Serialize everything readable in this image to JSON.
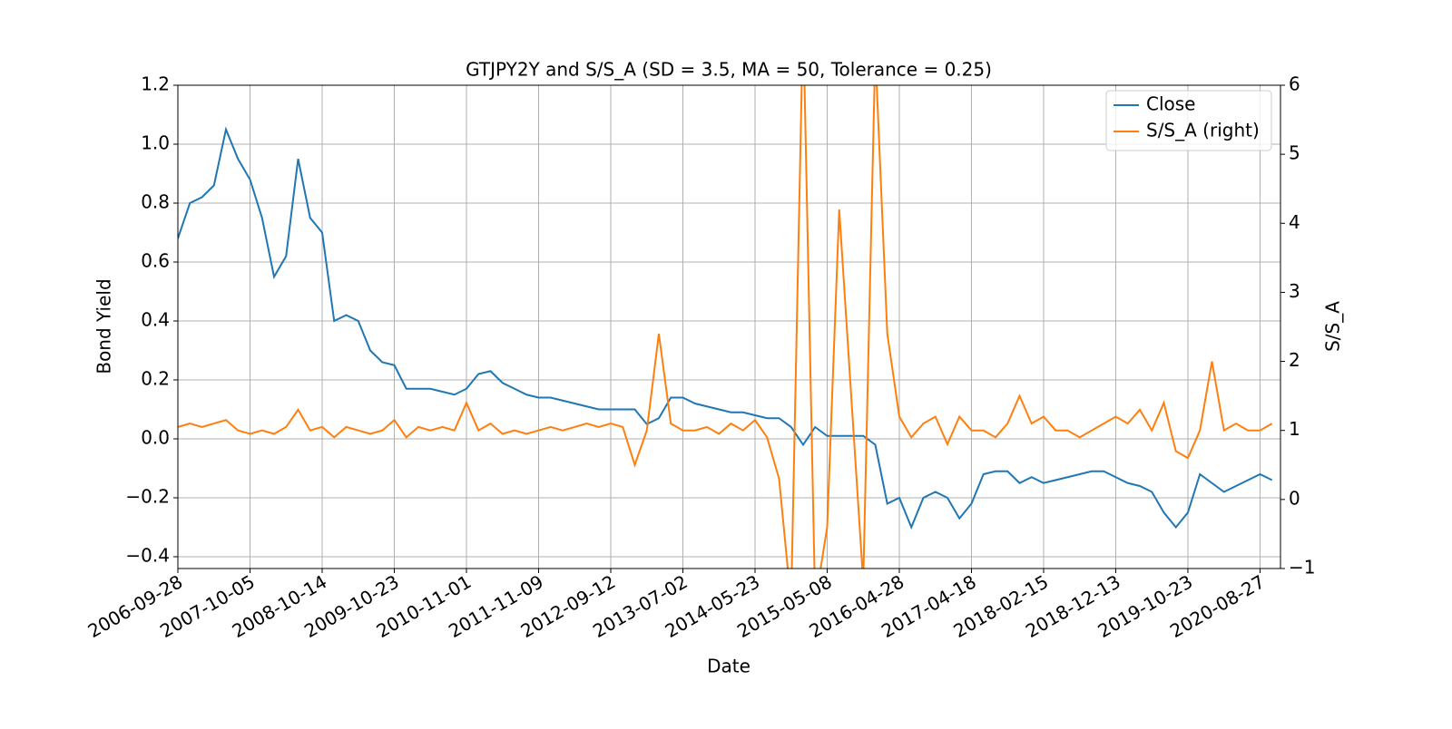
{
  "chart_data": {
    "type": "line",
    "title": "GTJPY2Y and S/S_A (SD = 3.5, MA = 50, Tolerance  = 0.25)",
    "x_label": "Date",
    "y_label": "Bond Yield",
    "y2_label": "S/S_A",
    "categories": [
      "2006-09-28",
      null,
      null,
      null,
      null,
      null,
      "2007-10-05",
      null,
      null,
      null,
      null,
      null,
      "2008-10-14",
      null,
      null,
      null,
      null,
      null,
      "2009-10-23",
      null,
      null,
      null,
      null,
      null,
      "2010-11-01",
      null,
      null,
      null,
      null,
      null,
      "2011-11-09",
      null,
      null,
      null,
      null,
      null,
      "2012-09-12",
      null,
      null,
      null,
      null,
      null,
      "2013-07-02",
      null,
      null,
      null,
      null,
      null,
      "2014-05-23",
      null,
      null,
      null,
      null,
      null,
      "2015-05-08",
      null,
      null,
      null,
      null,
      null,
      "2016-04-28",
      null,
      null,
      null,
      null,
      null,
      "2017-04-18",
      null,
      null,
      null,
      null,
      null,
      "2018-02-15",
      null,
      null,
      null,
      null,
      null,
      "2018-12-13",
      null,
      null,
      null,
      null,
      null,
      "2019-10-23",
      null,
      null,
      null,
      null,
      null,
      "2020-08-27",
      null
    ],
    "series": [
      {
        "name": "Close",
        "color": "#1f77b4",
        "axis": "y",
        "values": [
          0.68,
          0.8,
          0.82,
          0.86,
          1.05,
          0.95,
          0.88,
          0.75,
          0.55,
          0.62,
          0.95,
          0.75,
          0.7,
          0.4,
          0.42,
          0.4,
          0.3,
          0.26,
          0.25,
          0.17,
          0.17,
          0.17,
          0.16,
          0.15,
          0.17,
          0.22,
          0.23,
          0.19,
          0.17,
          0.15,
          0.14,
          0.14,
          0.13,
          0.12,
          0.11,
          0.1,
          0.1,
          0.1,
          0.1,
          0.05,
          0.07,
          0.14,
          0.14,
          0.12,
          0.11,
          0.1,
          0.09,
          0.09,
          0.08,
          0.07,
          0.07,
          0.04,
          -0.02,
          0.04,
          0.01,
          0.01,
          0.01,
          0.01,
          -0.02,
          -0.22,
          -0.2,
          -0.3,
          -0.2,
          -0.18,
          -0.2,
          -0.27,
          -0.22,
          -0.12,
          -0.11,
          -0.11,
          -0.15,
          -0.13,
          -0.15,
          -0.14,
          -0.13,
          -0.12,
          -0.11,
          -0.11,
          -0.13,
          -0.15,
          -0.16,
          -0.18,
          -0.25,
          -0.3,
          -0.25,
          -0.12,
          -0.15,
          -0.18,
          -0.16,
          -0.14,
          -0.12,
          -0.14
        ]
      },
      {
        "name": "S/S_A (right)",
        "color": "#ff7f0e",
        "axis": "y2",
        "values": [
          1.05,
          1.1,
          1.05,
          1.1,
          1.15,
          1.0,
          0.95,
          1.0,
          0.95,
          1.05,
          1.3,
          1.0,
          1.05,
          0.9,
          1.05,
          1.0,
          0.95,
          1.0,
          1.15,
          0.9,
          1.05,
          1.0,
          1.05,
          1.0,
          1.4,
          1.0,
          1.1,
          0.95,
          1.0,
          0.95,
          1.0,
          1.05,
          1.0,
          1.05,
          1.1,
          1.05,
          1.1,
          1.05,
          0.5,
          1.0,
          2.4,
          1.1,
          1.0,
          1.0,
          1.05,
          0.95,
          1.1,
          1.0,
          1.15,
          0.9,
          0.3,
          -1.5,
          7.0,
          -1.5,
          -0.4,
          4.2,
          1.5,
          -1.2,
          6.5,
          2.4,
          1.2,
          0.9,
          1.1,
          1.2,
          0.8,
          1.2,
          1.0,
          1.0,
          0.9,
          1.1,
          1.5,
          1.1,
          1.2,
          1.0,
          1.0,
          0.9,
          1.0,
          1.1,
          1.2,
          1.1,
          1.3,
          1.0,
          1.4,
          0.7,
          0.6,
          1.0,
          2.0,
          1.0,
          1.1,
          1.0,
          1.0,
          1.1
        ]
      }
    ],
    "ylim": [
      -0.44,
      1.2
    ],
    "yticks": [
      {
        "value": -0.4,
        "label": "−0.4"
      },
      {
        "value": -0.2,
        "label": "−0.2"
      },
      {
        "value": 0,
        "label": "0.0"
      },
      0.2,
      0.4,
      0.6,
      0.8,
      {
        "value": 1,
        "label": "1.0"
      },
      1.2
    ],
    "y2lim": [
      -1,
      6
    ],
    "y2ticks": [
      {
        "value": -1,
        "label": "−1"
      },
      0,
      1,
      2,
      3,
      4,
      5,
      6
    ],
    "grid": true,
    "legend": "upper right"
  }
}
